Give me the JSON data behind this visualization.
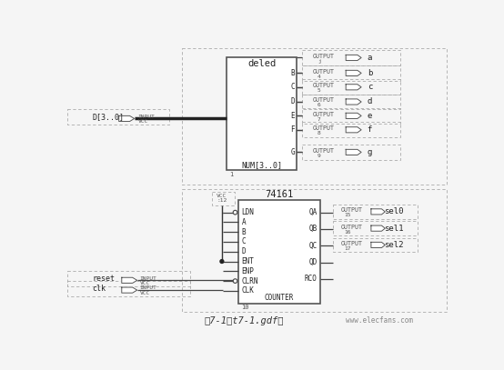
{
  "bg_color": "#f5f5f5",
  "title": "图7-1（t7-1.gdf）",
  "watermark": "www.elecfans.com",
  "deled_label": "deled",
  "counter_label": "74161",
  "counter_sublabel": "COUNTER",
  "deled_input_label": "NUM[3..0]",
  "deled_outputs": [
    "a",
    "b",
    "c",
    "d",
    "e",
    "f",
    "g"
  ],
  "deled_output_pins": [
    "j",
    "4",
    "5",
    "6",
    "7",
    "8",
    "9"
  ],
  "counter_inputs_left": [
    "LDN",
    "A",
    "B",
    "C",
    "D",
    "ENT",
    "ENP",
    "CLRN",
    "CLK"
  ],
  "counter_outputs_right": [
    "QA",
    "QB",
    "QC",
    "QD",
    "RCO"
  ],
  "sel_outputs": [
    "sel0",
    "sel1",
    "sel2"
  ],
  "sel_pins": [
    "15",
    "16",
    "17"
  ]
}
